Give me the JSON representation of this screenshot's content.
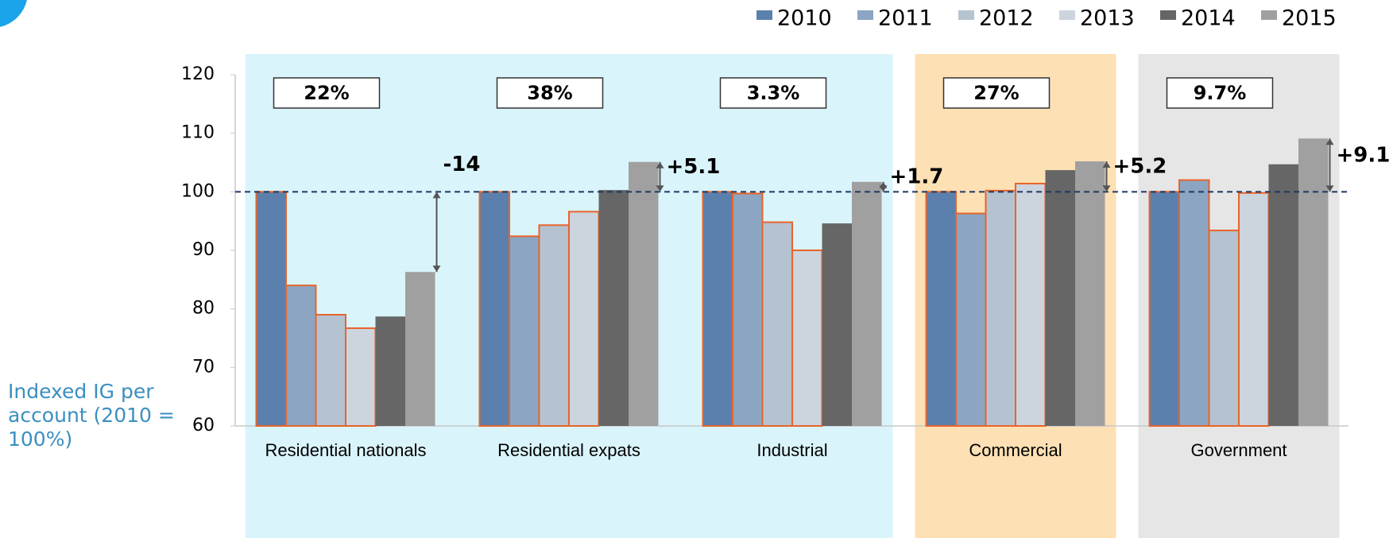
{
  "chart_data": {
    "type": "bar",
    "y_label": "Indexed IG per account (2010 = 100%)",
    "categories": [
      "Residential nationals",
      "Residential expats",
      "Industrial",
      "Commercial",
      "Government"
    ],
    "category_backgrounds": [
      "#daf4fb",
      "#daf4fb",
      "#daf4fb",
      "#fde0b4",
      "#e6e6e6"
    ],
    "series": [
      {
        "name": "2010",
        "color": "#5b80ad",
        "edge": "#e8642a",
        "values": [
          100,
          100,
          100,
          100,
          100
        ]
      },
      {
        "name": "2011",
        "color": "#8ca5c2",
        "edge": "#e8642a",
        "values": [
          84,
          92.4,
          99.7,
          96.3,
          102
        ]
      },
      {
        "name": "2012",
        "color": "#b5c3d1",
        "edge": "#e8642a",
        "values": [
          79,
          94.3,
          94.8,
          100.2,
          93.4
        ]
      },
      {
        "name": "2013",
        "color": "#ccd4de",
        "edge": "#e8642a",
        "values": [
          76.7,
          96.6,
          90,
          101.4,
          99.8
        ]
      },
      {
        "name": "2014",
        "color": "#666666",
        "values": [
          78.7,
          100.3,
          94.6,
          103.7,
          104.7
        ]
      },
      {
        "name": "2015",
        "color": "#a0a0a0",
        "values": [
          86.3,
          105.1,
          101.7,
          105.2,
          109.1
        ]
      }
    ],
    "share_labels": [
      "22%",
      "38%",
      "3.3%",
      "27%",
      "9.7%"
    ],
    "delta_labels": [
      "-14",
      "+5.1",
      "+1.7",
      "+5.2",
      "+9.1"
    ],
    "reference_line": 100,
    "ylim": [
      60,
      120
    ],
    "yticks": [
      60,
      70,
      80,
      90,
      100,
      110,
      120
    ],
    "legend": "top-right"
  }
}
